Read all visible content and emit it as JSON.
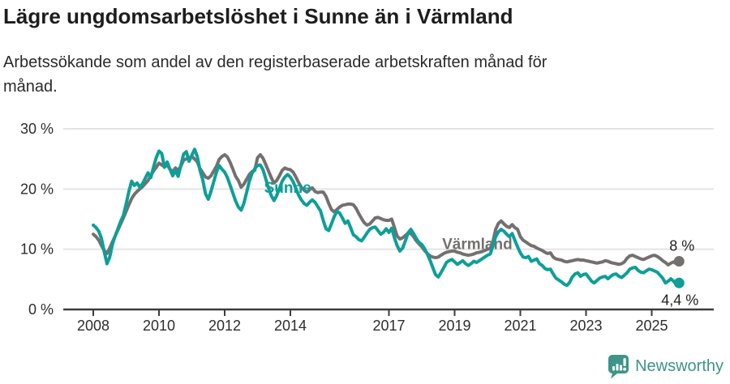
{
  "chart_data": {
    "type": "line",
    "title": "Lägre ungdomsarbetslöshet i Sunne än i Värmland",
    "subtitle": "Arbetssökande som andel av den registerbaserade arbetskraften månad för\nmånad.",
    "unit": "percent of registered labour force",
    "frequency": "monthly",
    "x_start": "2008-01",
    "x_end": "2025-11",
    "ylim": [
      0,
      30
    ],
    "grid": true,
    "legend_position": "inline-labels",
    "y_ticks": [
      {
        "value": 0,
        "label": "0 %"
      },
      {
        "value": 10,
        "label": "10 %"
      },
      {
        "value": 20,
        "label": "20 %"
      },
      {
        "value": 30,
        "label": "30 %"
      }
    ],
    "x_ticks": [
      {
        "year": 2008,
        "label": "2008"
      },
      {
        "year": 2010,
        "label": "2010"
      },
      {
        "year": 2012,
        "label": "2012"
      },
      {
        "year": 2014,
        "label": "2014"
      },
      {
        "year": 2017,
        "label": "2017"
      },
      {
        "year": 2019,
        "label": "2019"
      },
      {
        "year": 2021,
        "label": "2021"
      },
      {
        "year": 2023,
        "label": "2023"
      },
      {
        "year": 2025,
        "label": "2025"
      }
    ],
    "series": [
      {
        "id": "sunne",
        "name": "Sunne",
        "color": "#0d9f98",
        "start_year": 2008,
        "end_label": "4,4 %",
        "end_value": 4.4,
        "label_pos": {
          "year": 2013.2,
          "value": 19.4
        },
        "values": [
          14.0,
          13.6,
          13.0,
          11.8,
          9.6,
          7.6,
          8.7,
          10.8,
          12.2,
          13.4,
          14.6,
          15.6,
          17.5,
          19.6,
          21.3,
          20.6,
          21.0,
          20.3,
          20.9,
          21.8,
          22.7,
          21.9,
          23.6,
          25.2,
          26.3,
          25.9,
          23.6,
          24.5,
          23.3,
          22.2,
          23.1,
          22.1,
          23.9,
          25.8,
          26.2,
          24.6,
          25.6,
          26.6,
          25.4,
          23.1,
          21.5,
          19.2,
          18.3,
          19.6,
          21.2,
          22.8,
          23.9,
          23.3,
          22.8,
          21.9,
          20.6,
          19.3,
          18.0,
          17.0,
          16.5,
          17.6,
          19.4,
          21.3,
          22.6,
          23.4,
          23.9,
          24.0,
          23.2,
          21.7,
          20.2,
          18.9,
          18.1,
          18.9,
          20.1,
          21.3,
          22.0,
          22.4,
          22.0,
          21.2,
          20.1,
          19.0,
          18.2,
          17.6,
          17.3,
          17.8,
          18.2,
          17.8,
          17.1,
          16.4,
          14.8,
          13.4,
          13.1,
          14.2,
          15.4,
          16.3,
          16.0,
          15.2,
          14.3,
          14.7,
          13.6,
          12.4,
          12.1,
          11.6,
          11.4,
          12.0,
          12.7,
          13.3,
          13.6,
          13.7,
          13.1,
          12.5,
          12.8,
          13.4,
          12.8,
          13.5,
          11.9,
          10.6,
          9.7,
          10.2,
          11.4,
          12.7,
          13.3,
          12.6,
          11.8,
          11.1,
          10.8,
          10.1,
          9.2,
          8.2,
          7.0,
          5.8,
          5.4,
          6.1,
          6.9,
          7.8,
          8.1,
          8.3,
          7.9,
          7.5,
          7.8,
          8.1,
          7.6,
          7.3,
          7.6,
          8.0,
          7.8,
          8.1,
          8.4,
          8.7,
          9.0,
          9.2,
          10.6,
          12.1,
          12.9,
          13.3,
          13.0,
          12.5,
          12.1,
          12.6,
          11.5,
          10.4,
          9.4,
          8.7,
          8.6,
          8.8,
          8.0,
          8.2,
          8.4,
          7.6,
          7.3,
          6.8,
          6.6,
          6.7,
          5.9,
          5.2,
          4.9,
          4.6,
          4.2,
          4.0,
          4.5,
          5.4,
          5.9,
          6.1,
          5.5,
          5.8,
          5.9,
          5.3,
          4.7,
          4.4,
          4.8,
          5.2,
          5.4,
          5.5,
          5.1,
          5.5,
          5.8,
          5.9,
          5.5,
          5.3,
          5.7,
          6.1,
          6.7,
          6.9,
          7.0,
          6.5,
          6.2,
          6.1,
          6.4,
          6.7,
          6.6,
          6.4,
          6.2,
          5.7,
          5.2,
          4.4,
          4.7,
          5.1,
          4.7,
          4.1,
          4.4
        ]
      },
      {
        "id": "varmland",
        "name": "Värmland",
        "color": "#757070",
        "start_year": 2008,
        "end_label": "8 %",
        "end_value": 8.0,
        "label_pos": {
          "year": 2018.62,
          "value": 10.0
        },
        "values": [
          12.5,
          12.1,
          11.5,
          10.6,
          9.8,
          9.3,
          10.2,
          11.2,
          12.2,
          13.2,
          14.2,
          15.2,
          16.3,
          17.4,
          18.4,
          19.1,
          19.6,
          20.0,
          20.4,
          20.9,
          21.4,
          22.2,
          23.0,
          23.6,
          24.3,
          24.0,
          23.7,
          24.0,
          23.3,
          22.9,
          23.5,
          23.1,
          23.8,
          24.8,
          25.0,
          25.2,
          25.4,
          25.0,
          24.5,
          23.4,
          22.7,
          22.0,
          21.8,
          22.2,
          23.0,
          23.8,
          24.9,
          25.4,
          25.7,
          25.3,
          24.4,
          23.3,
          22.1,
          21.4,
          20.3,
          20.8,
          21.6,
          22.4,
          22.9,
          23.1,
          25.2,
          25.7,
          25.1,
          24.1,
          23.0,
          21.9,
          21.0,
          21.4,
          22.2,
          23.1,
          23.5,
          23.3,
          23.2,
          22.8,
          22.0,
          21.1,
          20.3,
          19.8,
          19.5,
          19.9,
          20.2,
          19.6,
          19.4,
          19.5,
          19.5,
          18.8,
          17.6,
          16.6,
          16.2,
          16.6,
          17.0,
          17.3,
          17.4,
          17.5,
          17.5,
          17.4,
          16.8,
          15.9,
          15.1,
          14.4,
          14.0,
          14.2,
          14.7,
          15.2,
          15.3,
          15.1,
          14.9,
          14.8,
          14.8,
          15.0,
          13.6,
          12.2,
          11.7,
          11.9,
          12.3,
          12.7,
          12.6,
          12.1,
          11.4,
          10.9,
          10.4,
          9.8,
          9.3,
          8.9,
          8.7,
          8.6,
          8.7,
          9.0,
          9.3,
          9.5,
          9.6,
          9.7,
          9.7,
          9.5,
          9.4,
          9.2,
          9.1,
          9.0,
          9.1,
          9.2,
          9.4,
          9.5,
          9.6,
          9.8,
          10.0,
          10.1,
          11.3,
          13.3,
          14.3,
          14.7,
          14.2,
          13.8,
          13.6,
          14.1,
          13.6,
          13.3,
          12.1,
          11.5,
          11.2,
          10.9,
          10.6,
          10.5,
          10.2,
          10.0,
          9.8,
          9.5,
          9.3,
          9.4,
          8.7,
          8.4,
          8.3,
          8.2,
          8.0,
          7.9,
          8.0,
          8.1,
          8.2,
          8.3,
          8.2,
          8.2,
          8.1,
          8.0,
          7.9,
          7.8,
          7.7,
          7.8,
          7.9,
          8.1,
          8.0,
          7.8,
          7.7,
          7.6,
          7.5,
          7.6,
          7.9,
          8.5,
          8.9,
          9.0,
          8.8,
          8.6,
          8.4,
          8.3,
          8.5,
          8.7,
          8.9,
          9.0,
          8.8,
          8.5,
          8.1,
          7.8,
          7.4,
          7.7,
          7.9,
          7.6,
          8.0
        ]
      }
    ]
  },
  "footer": {
    "brand": "Newsworthy",
    "brand_color": "#3d9489"
  }
}
